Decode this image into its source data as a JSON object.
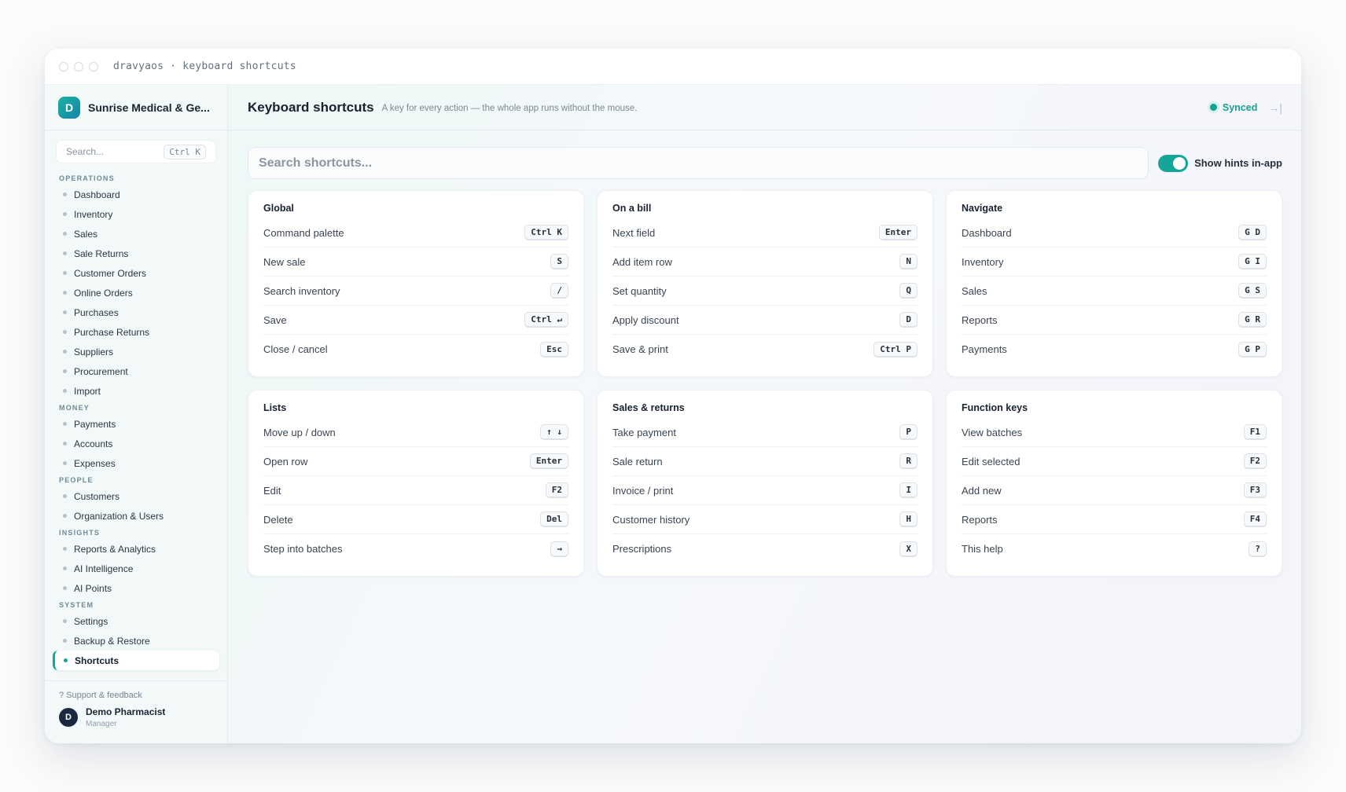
{
  "window": {
    "title": "dravyaos · keyboard shortcuts"
  },
  "sidebar": {
    "brand_initial": "D",
    "brand_name": "Sunrise Medical & Ge...",
    "search_placeholder": "Search...",
    "search_shortcut": "Ctrl K",
    "sections": [
      {
        "label": "OPERATIONS",
        "items": [
          "Dashboard",
          "Inventory",
          "Sales",
          "Sale Returns",
          "Customer Orders",
          "Online Orders",
          "Purchases",
          "Purchase Returns",
          "Suppliers",
          "Procurement",
          "Import"
        ]
      },
      {
        "label": "MONEY",
        "items": [
          "Payments",
          "Accounts",
          "Expenses"
        ]
      },
      {
        "label": "PEOPLE",
        "items": [
          "Customers",
          "Organization & Users"
        ]
      },
      {
        "label": "INSIGHTS",
        "items": [
          "Reports & Analytics",
          "AI Intelligence",
          "AI Points"
        ]
      },
      {
        "label": "SYSTEM",
        "items": [
          "Settings",
          "Backup & Restore",
          "Shortcuts"
        ]
      }
    ],
    "active_item": "Shortcuts",
    "support": "? Support & feedback",
    "user": {
      "initial": "D",
      "name": "Demo Pharmacist",
      "role": "Manager"
    }
  },
  "header": {
    "title": "Keyboard shortcuts",
    "subtitle": "A key for every action — the whole app runs without the mouse.",
    "status": "Synced",
    "collapse_icon": "→|"
  },
  "toolbar": {
    "search_placeholder": "Search shortcuts...",
    "toggle_label": "Show hints in-app",
    "toggle_on": true
  },
  "colors": {
    "accent": "#17a597",
    "brand_gradient_start": "#19b3a4",
    "brand_gradient_end": "#1782a8"
  },
  "groups": [
    {
      "title": "Global",
      "rows": [
        {
          "label": "Command palette",
          "key": "Ctrl K"
        },
        {
          "label": "New sale",
          "key": "S"
        },
        {
          "label": "Search inventory",
          "key": "/"
        },
        {
          "label": "Save",
          "key": "Ctrl ↵"
        },
        {
          "label": "Close / cancel",
          "key": "Esc"
        }
      ]
    },
    {
      "title": "On a bill",
      "rows": [
        {
          "label": "Next field",
          "key": "Enter"
        },
        {
          "label": "Add item row",
          "key": "N"
        },
        {
          "label": "Set quantity",
          "key": "Q"
        },
        {
          "label": "Apply discount",
          "key": "D"
        },
        {
          "label": "Save & print",
          "key": "Ctrl P"
        }
      ]
    },
    {
      "title": "Navigate",
      "rows": [
        {
          "label": "Dashboard",
          "key": "G D"
        },
        {
          "label": "Inventory",
          "key": "G I"
        },
        {
          "label": "Sales",
          "key": "G S"
        },
        {
          "label": "Reports",
          "key": "G R"
        },
        {
          "label": "Payments",
          "key": "G P"
        }
      ]
    },
    {
      "title": "Lists",
      "rows": [
        {
          "label": "Move up / down",
          "key": "↑ ↓"
        },
        {
          "label": "Open row",
          "key": "Enter"
        },
        {
          "label": "Edit",
          "key": "F2"
        },
        {
          "label": "Delete",
          "key": "Del"
        },
        {
          "label": "Step into batches",
          "key": "→"
        }
      ]
    },
    {
      "title": "Sales & returns",
      "rows": [
        {
          "label": "Take payment",
          "key": "P"
        },
        {
          "label": "Sale return",
          "key": "R"
        },
        {
          "label": "Invoice / print",
          "key": "I"
        },
        {
          "label": "Customer history",
          "key": "H"
        },
        {
          "label": "Prescriptions",
          "key": "X"
        }
      ]
    },
    {
      "title": "Function keys",
      "rows": [
        {
          "label": "View batches",
          "key": "F1"
        },
        {
          "label": "Edit selected",
          "key": "F2"
        },
        {
          "label": "Add new",
          "key": "F3"
        },
        {
          "label": "Reports",
          "key": "F4"
        },
        {
          "label": "This help",
          "key": "?"
        }
      ]
    }
  ]
}
